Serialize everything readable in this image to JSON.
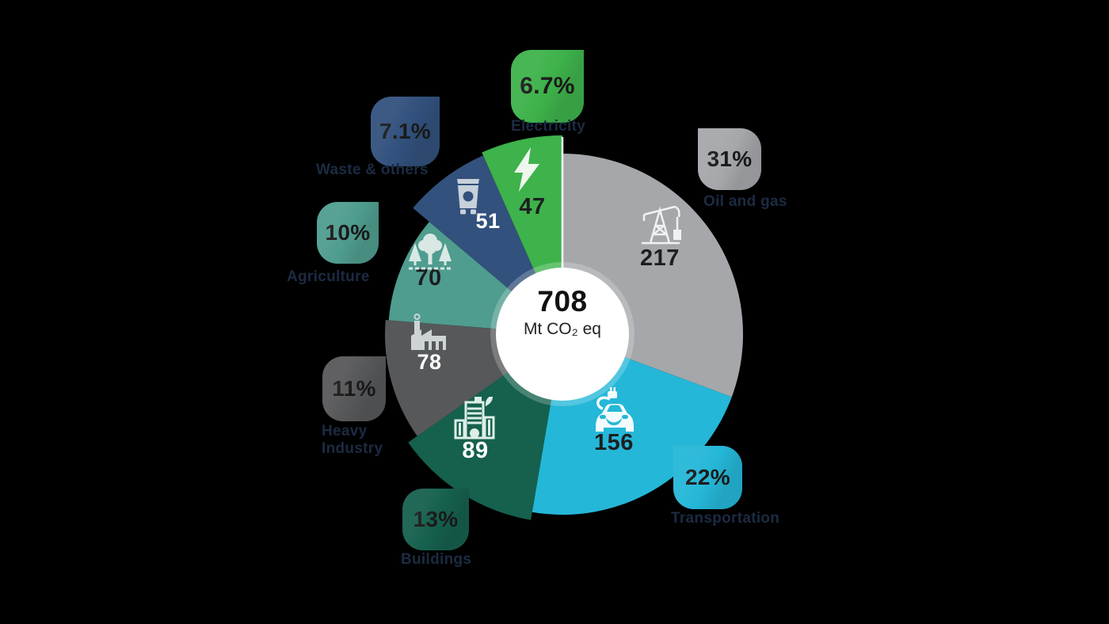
{
  "chart_data": {
    "type": "pie",
    "donut": true,
    "title": "",
    "legend_position": "around-chart",
    "total": 708,
    "center": {
      "total": "708",
      "unit": "Mt CO₂ eq"
    },
    "slices": [
      {
        "id": "oil-and-gas",
        "label": "Oil and gas",
        "pct": "31%",
        "value": 217,
        "color": "#A5A7AA",
        "value_color": "#1d1e20",
        "radius": 228
      },
      {
        "id": "transportation",
        "label": "Transportation",
        "pct": "22%",
        "value": 156,
        "color": "#25B7D8",
        "value_color": "#1d1e20",
        "radius": 228
      },
      {
        "id": "buildings",
        "label": "Buildings",
        "pct": "13%",
        "value": 89,
        "color": "#16604E",
        "value_color": "#ffffff",
        "radius": 238
      },
      {
        "id": "heavy-industry",
        "label": "Heavy Industry",
        "pct": "11%",
        "value": 78,
        "color": "#57585A",
        "value_color": "#ffffff",
        "radius": 224
      },
      {
        "id": "agriculture",
        "label": "Agriculture",
        "pct": "10%",
        "value": 70,
        "color": "#4F9D8F",
        "value_color": "#1d1e20",
        "radius": 220
      },
      {
        "id": "waste-others",
        "label": "Waste & others",
        "pct": "7.1%",
        "value": 51,
        "color": "#32517D",
        "value_color": "#ffffff",
        "radius": 247
      },
      {
        "id": "electricity",
        "label": "Electricity",
        "pct": "6.7%",
        "value": 47,
        "color": "#3EB24B",
        "value_color": "#1d1e20",
        "radius": 251
      }
    ]
  },
  "colors": {
    "background": "#000000",
    "center_circle": "#ffffff",
    "separator_line": "#ffffff",
    "badge_text": "#1a1a1a",
    "label_text": "#1c2b42"
  }
}
